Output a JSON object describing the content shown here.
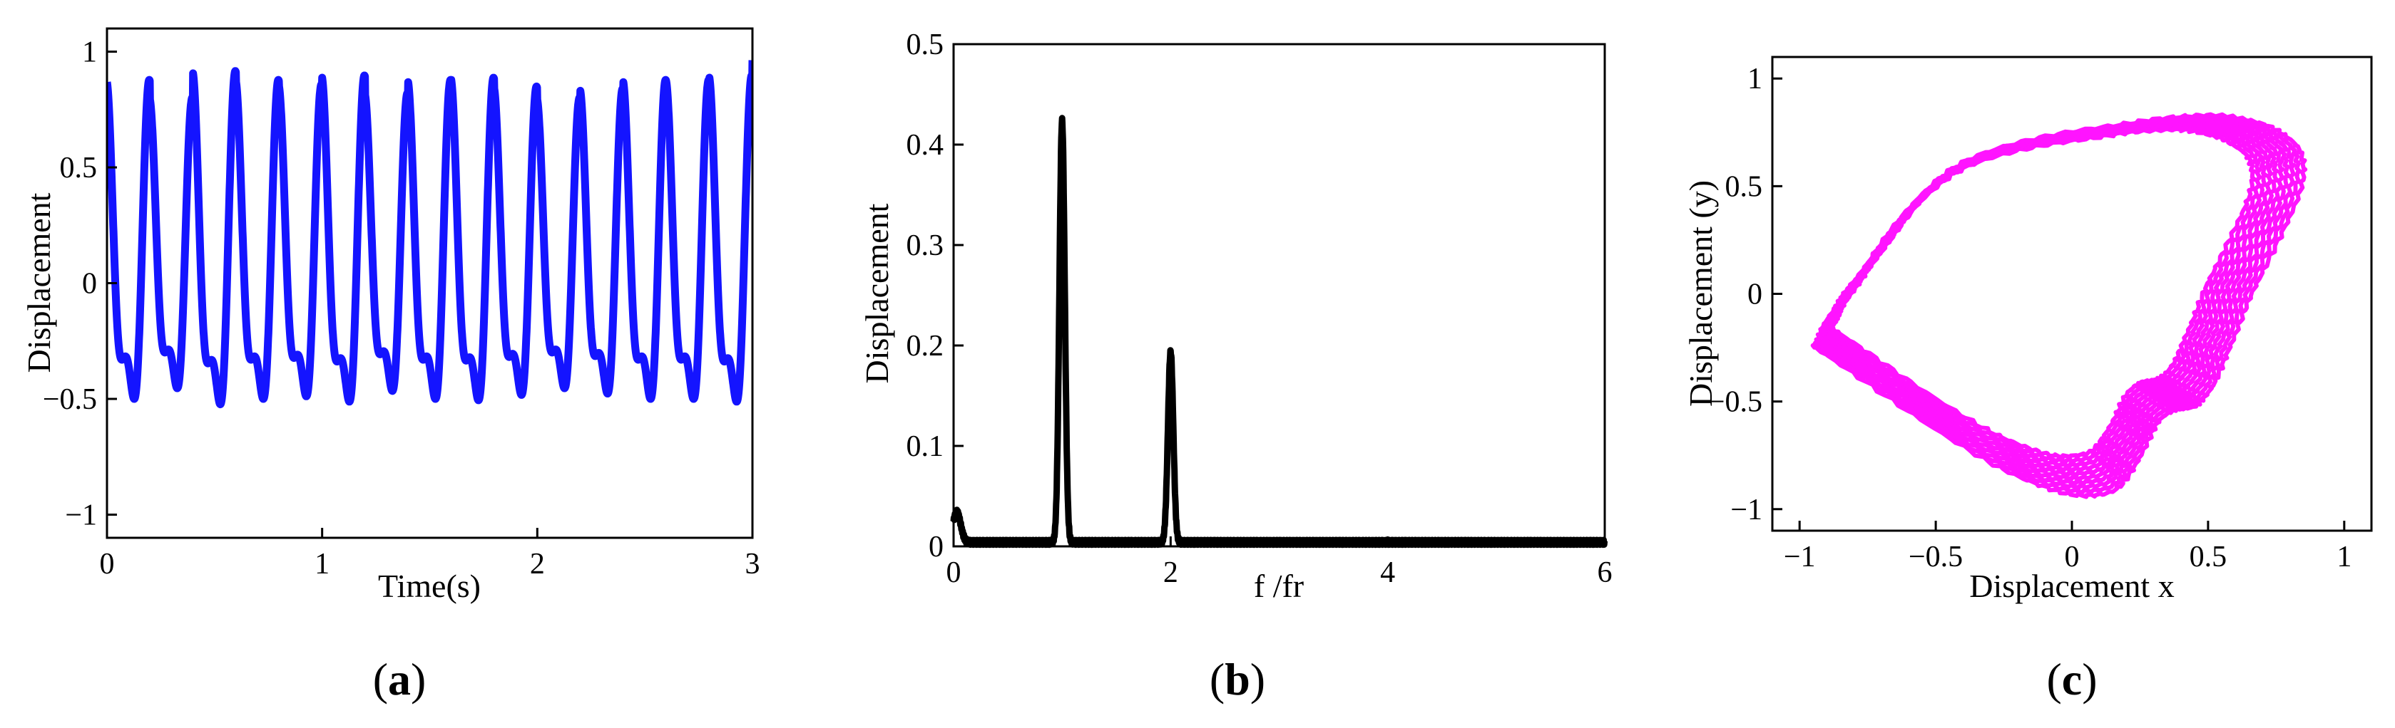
{
  "panels": [
    {
      "label_open": "(",
      "label_letter": "a",
      "label_close": ")",
      "chart_data": {
        "type": "line",
        "xlabel": "Time(s)",
        "ylabel": "Displacement",
        "xlim": [
          0,
          3
        ],
        "ylim": [
          -1.1,
          1.1
        ],
        "xticks": [
          {
            "v": 0,
            "t": "0"
          },
          {
            "v": 1,
            "t": "1"
          },
          {
            "v": 2,
            "t": "2"
          },
          {
            "v": 3,
            "t": "3"
          }
        ],
        "yticks": [
          {
            "v": -1,
            "t": "−1"
          },
          {
            "v": -0.5,
            "t": "−0.5"
          },
          {
            "v": 0,
            "t": "0"
          },
          {
            "v": 0.5,
            "t": "0.5"
          },
          {
            "v": 1,
            "t": "1"
          }
        ],
        "series": [
          {
            "color": "#1414ff",
            "model": "periodic",
            "frequency": 5,
            "t_start": 0,
            "t_end": 3,
            "amplitudes": [
              0.9,
              0.82,
              0.94,
              0.9,
              0.88,
              0.92,
              0.84,
              0.9,
              0.91,
              0.87,
              0.82,
              0.86,
              0.9,
              0.9,
              0.92,
              1.0,
              1.0,
              0.98,
              0.95,
              0.96
            ],
            "shoulder_level": 0.5
          }
        ],
        "color": "#1414ff"
      }
    },
    {
      "label_open": "(",
      "label_letter": "b",
      "label_close": ")",
      "chart_data": {
        "type": "line",
        "xlabel": "f /fr",
        "ylabel": "Displacement",
        "xlim": [
          0,
          6
        ],
        "ylim": [
          0,
          0.5
        ],
        "xticks": [
          {
            "v": 0,
            "t": "0"
          },
          {
            "v": 2,
            "t": "2"
          },
          {
            "v": 4,
            "t": "4"
          },
          {
            "v": 6,
            "t": "6"
          }
        ],
        "yticks": [
          {
            "v": 0,
            "t": "0"
          },
          {
            "v": 0.1,
            "t": "0.1"
          },
          {
            "v": 0.2,
            "t": "0.2"
          },
          {
            "v": 0.3,
            "t": "0.3"
          },
          {
            "v": 0.4,
            "t": "0.4"
          },
          {
            "v": 0.5,
            "t": "0.5"
          }
        ],
        "peaks": [
          {
            "x": 0.03,
            "y": 0.03
          },
          {
            "x": 1.0,
            "y": 0.42
          },
          {
            "x": 2.0,
            "y": 0.19
          }
        ],
        "baseline": 0.004,
        "color": "#000000"
      }
    },
    {
      "label_open": "(",
      "label_letter": "c",
      "label_close": ")",
      "chart_data": {
        "type": "line",
        "xlabel": "Displacement x",
        "ylabel": "Displacement (y)",
        "xlim": [
          -1.1,
          1.1
        ],
        "ylim": [
          -1.1,
          1.1
        ],
        "xticks": [
          {
            "v": -1,
            "t": "−1"
          },
          {
            "v": -0.5,
            "t": "−0.5"
          },
          {
            "v": 0,
            "t": "0"
          },
          {
            "v": 0.5,
            "t": "0.5"
          },
          {
            "v": 1,
            "t": "1"
          }
        ],
        "yticks": [
          {
            "v": -1,
            "t": "−1"
          },
          {
            "v": -0.5,
            "t": "−0.5"
          },
          {
            "v": 0,
            "t": "0"
          },
          {
            "v": 0.5,
            "t": "0.5"
          },
          {
            "v": 1,
            "t": "1"
          }
        ],
        "loop_points": [
          [
            -0.98,
            -0.22
          ],
          [
            -0.85,
            0.05
          ],
          [
            -0.45,
            0.62
          ],
          [
            0.2,
            0.82
          ],
          [
            0.62,
            0.83
          ],
          [
            0.82,
            0.6
          ],
          [
            0.62,
            0.0
          ],
          [
            0.46,
            -0.45
          ],
          [
            0.3,
            -0.55
          ],
          [
            0.1,
            -0.9
          ],
          [
            -0.3,
            -0.78
          ],
          [
            -0.98,
            -0.22
          ]
        ],
        "loops": 10,
        "color": "#ff14ff"
      }
    }
  ]
}
